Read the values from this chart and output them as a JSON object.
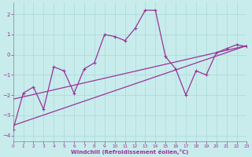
{
  "xlabel": "Windchill (Refroidissement éolien,°C)",
  "bg_color": "#c8ecec",
  "grid_color": "#aad8d8",
  "line_color": "#993399",
  "x_data": [
    0,
    1,
    2,
    3,
    4,
    5,
    6,
    7,
    8,
    9,
    10,
    11,
    12,
    13,
    14,
    15,
    16,
    17,
    18,
    19,
    20,
    21,
    22,
    23
  ],
  "y_main": [
    -3.7,
    -1.9,
    -1.6,
    -2.7,
    -0.6,
    -0.8,
    -1.9,
    -0.7,
    -0.4,
    1.0,
    0.9,
    0.7,
    1.3,
    2.2,
    2.2,
    -0.1,
    -0.7,
    -2.0,
    -0.8,
    -1.0,
    0.1,
    0.3,
    0.5,
    0.4
  ],
  "xlim": [
    0,
    23
  ],
  "ylim": [
    -4.3,
    2.6
  ],
  "yticks": [
    -4,
    -3,
    -2,
    -1,
    0,
    1,
    2
  ],
  "xticks": [
    0,
    1,
    2,
    3,
    4,
    5,
    6,
    7,
    8,
    9,
    10,
    11,
    12,
    13,
    14,
    15,
    16,
    17,
    18,
    19,
    20,
    21,
    22,
    23
  ],
  "trend_line1": [
    -2.5,
    0.45
  ],
  "trend_line2": [
    -3.6,
    0.45
  ],
  "marker_size": 3.0,
  "line_width": 0.9
}
